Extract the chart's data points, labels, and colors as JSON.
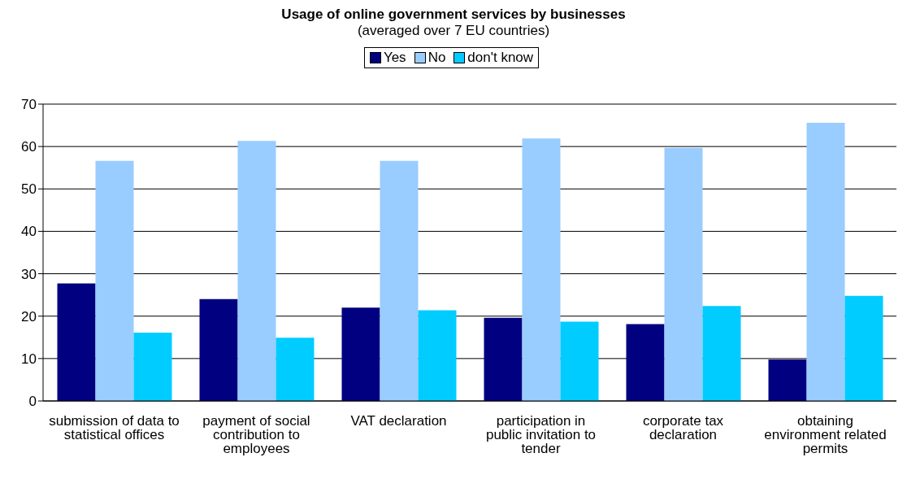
{
  "chart_data": {
    "type": "bar",
    "title": "Usage of online government services by businesses",
    "subtitle": "(averaged over 7 EU countries)",
    "categories": [
      "submission of data to statistical offices",
      "payment of social contribution to employees",
      "VAT declaration",
      "participation in public invitation to tender",
      "corporate tax declaration",
      "obtaining environment related permits"
    ],
    "series": [
      {
        "name": "Yes",
        "color": "#000080",
        "values": [
          27.7,
          24.0,
          22.0,
          19.6,
          18.1,
          9.8
        ]
      },
      {
        "name": "No",
        "color": "#99ccff",
        "values": [
          56.6,
          61.3,
          56.6,
          61.9,
          59.7,
          65.6
        ]
      },
      {
        "name": "don't know",
        "color": "#00ccff",
        "values": [
          16.1,
          14.9,
          21.4,
          18.7,
          22.4,
          24.8
        ]
      }
    ],
    "ylim": [
      0,
      70
    ],
    "yticks": [
      0,
      10,
      20,
      30,
      40,
      50,
      60,
      70
    ],
    "grid": "y",
    "legend": "top"
  }
}
